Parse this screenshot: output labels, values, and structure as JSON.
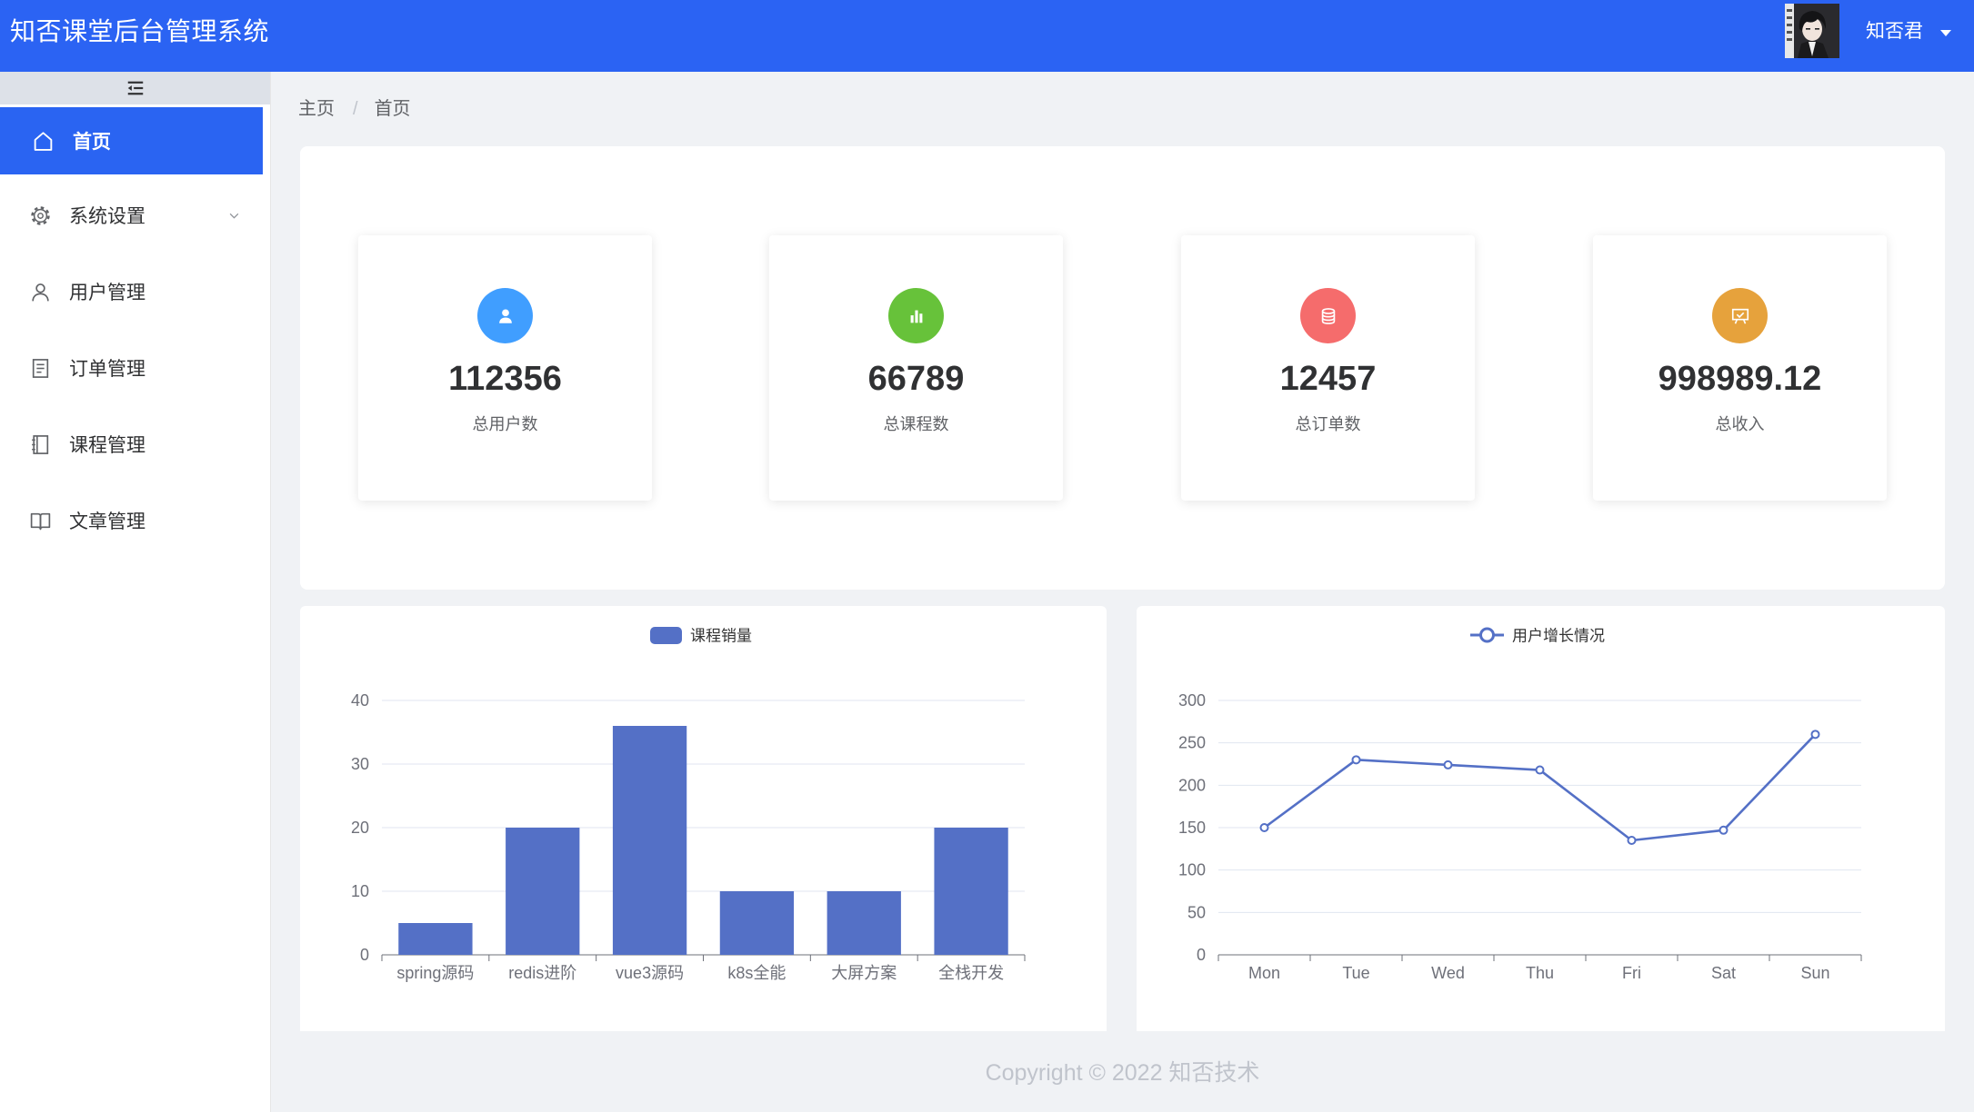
{
  "header": {
    "title": "知否课堂后台管理系统",
    "username": "知否君",
    "avatar_icon": "avatar-image",
    "dropdown_icon": "caret-down-icon"
  },
  "sidebar": {
    "collapse_icon": "fold-icon",
    "items": [
      {
        "label": "首页",
        "icon": "home-icon",
        "active": true
      },
      {
        "label": "系统设置",
        "icon": "gear-icon",
        "submenu": true,
        "submenu_icon": "chevron-down-icon"
      },
      {
        "label": "用户管理",
        "icon": "user-icon"
      },
      {
        "label": "订单管理",
        "icon": "document-icon"
      },
      {
        "label": "课程管理",
        "icon": "notebook-icon"
      },
      {
        "label": "文章管理",
        "icon": "book-icon"
      }
    ]
  },
  "breadcrumb": {
    "items": [
      "主页",
      "首页"
    ],
    "separator": "/"
  },
  "stats": [
    {
      "value": "112356",
      "label": "总用户数",
      "icon": "user-icon",
      "color": "#409eff"
    },
    {
      "value": "66789",
      "label": "总课程数",
      "icon": "bar-chart-icon",
      "color": "#67c23a"
    },
    {
      "value": "12457",
      "label": "总订单数",
      "icon": "database-icon",
      "color": "#f56c6c"
    },
    {
      "value": "998989.12",
      "label": "总收入",
      "icon": "presentation-icon",
      "color": "#e6a23c"
    }
  ],
  "chart_data": [
    {
      "type": "bar",
      "legend_position": "top-center",
      "categories": [
        "spring源码",
        "redis进阶",
        "vue3源码",
        "k8s全能",
        "大屏方案",
        "全栈开发"
      ],
      "series": [
        {
          "name": "课程销量",
          "values": [
            5,
            20,
            36,
            10,
            10,
            20
          ]
        }
      ],
      "ylim": [
        0,
        40
      ],
      "yticks": [
        0,
        10,
        20,
        30,
        40
      ],
      "grid": true,
      "color": "#5470c6"
    },
    {
      "type": "line",
      "legend_position": "top-center",
      "categories": [
        "Mon",
        "Tue",
        "Wed",
        "Thu",
        "Fri",
        "Sat",
        "Sun"
      ],
      "series": [
        {
          "name": "用户增长情况",
          "values": [
            150,
            230,
            224,
            218,
            135,
            147,
            260
          ]
        }
      ],
      "ylim": [
        0,
        300
      ],
      "yticks": [
        0,
        50,
        100,
        150,
        200,
        250,
        300
      ],
      "grid": true,
      "color": "#5470c6"
    }
  ],
  "footer": {
    "copyright": "Copyright © 2022 知否技术"
  },
  "colors": {
    "primary": "#2b63f3",
    "active_menu": "#2a64f2",
    "page_background": "#f0f2f5"
  }
}
